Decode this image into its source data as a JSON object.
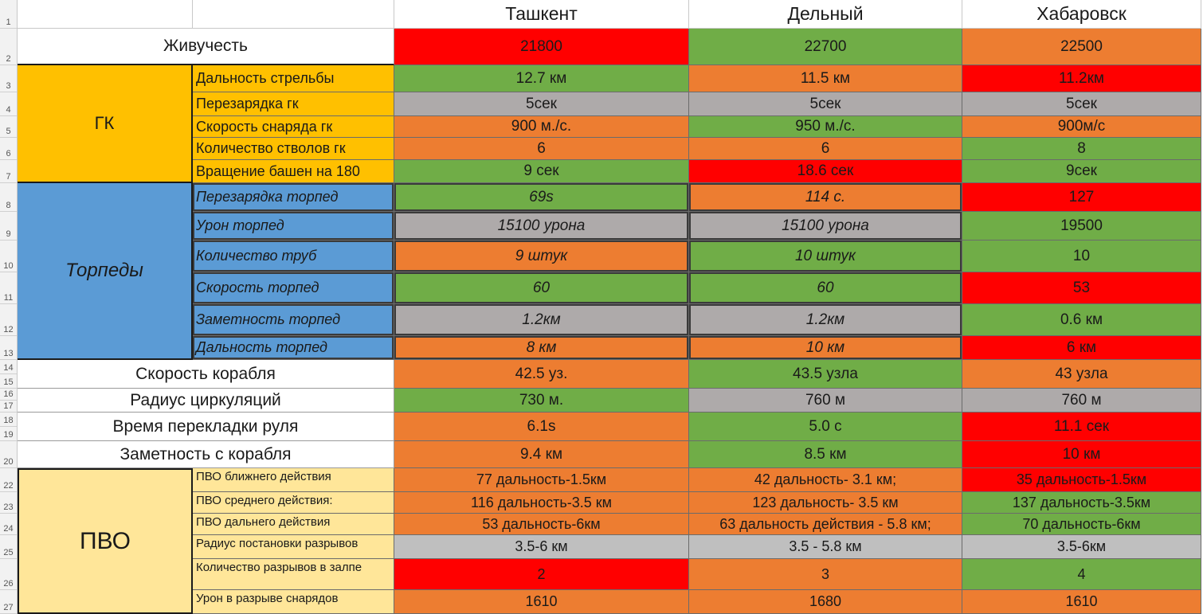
{
  "colors": {
    "red": "#ff0000",
    "green": "#70ad47",
    "orange": "#ed7d31",
    "gray": "#aeaaaa",
    "gold": "#ffc000",
    "blue": "#5b9bd5",
    "pale": "#ffe699"
  },
  "columns": [
    "Ташкент",
    "Дельный",
    "Хабаровск"
  ],
  "row_numbers": [
    "1",
    "2",
    "3",
    "4",
    "5",
    "6",
    "7",
    "8",
    "9",
    "10",
    "11",
    "12",
    "13",
    "14",
    "15",
    "16",
    "17",
    "18",
    "19",
    "20",
    "22",
    "23",
    "24",
    "25",
    "26",
    "27"
  ],
  "survivability": {
    "label": "Живучесть",
    "values": [
      "21800",
      "22700",
      "22500"
    ],
    "colors": [
      "red",
      "green",
      "orange"
    ]
  },
  "gk": {
    "group": "ГК",
    "rows": [
      {
        "label": "Дальность стрельбы",
        "values": [
          "12.7 км",
          "11.5 км",
          "11.2км"
        ],
        "colors": [
          "green",
          "orange",
          "red"
        ]
      },
      {
        "label": "Перезарядка гк",
        "values": [
          "5сек",
          "5сек",
          "5сек"
        ],
        "colors": [
          "gray",
          "gray",
          "gray"
        ]
      },
      {
        "label": "Скорость снаряда гк",
        "values": [
          "900 м./с.",
          "950 м./с.",
          "900м/с"
        ],
        "colors": [
          "orange",
          "green",
          "orange"
        ]
      },
      {
        "label": "Количество стволов гк",
        "values": [
          "6",
          "6",
          "8"
        ],
        "colors": [
          "orange",
          "orange",
          "green"
        ]
      },
      {
        "label": "Вращение башен на 180",
        "values": [
          "9 сек",
          "18.6 сек",
          "9сек"
        ],
        "colors": [
          "green",
          "red",
          "green"
        ]
      }
    ]
  },
  "torpedoes": {
    "group": "Торпеды",
    "rows": [
      {
        "label": "Перезарядка торпед",
        "values": [
          "69s",
          "114 с.",
          "127"
        ],
        "colors": [
          "green",
          "orange",
          "red"
        ]
      },
      {
        "label": "Урон торпед",
        "values": [
          "15100 урона",
          "15100 урона",
          "19500"
        ],
        "colors": [
          "gray",
          "gray",
          "green"
        ]
      },
      {
        "label": "Количество труб",
        "values": [
          "9 штук",
          "10 штук",
          "10"
        ],
        "colors": [
          "orange",
          "green",
          "green"
        ]
      },
      {
        "label": "Скорость торпед",
        "values": [
          "60",
          "60",
          "53"
        ],
        "colors": [
          "green",
          "green",
          "red"
        ]
      },
      {
        "label": "Заметность торпед",
        "values": [
          "1.2км",
          "1.2км",
          "0.6 км"
        ],
        "colors": [
          "gray",
          "gray",
          "green"
        ]
      },
      {
        "label": "Дальность торпед",
        "values": [
          "8 км",
          "10 км",
          "6 км"
        ],
        "colors": [
          "orange",
          "orange",
          "red"
        ]
      }
    ]
  },
  "singles": [
    {
      "label": "Скорость корабля",
      "values": [
        "42.5 уз.",
        "43.5 узла",
        "43 узла"
      ],
      "colors": [
        "orange",
        "green",
        "orange"
      ]
    },
    {
      "label": "Радиус циркуляций",
      "values": [
        "730 м.",
        "760 м",
        "760 м"
      ],
      "colors": [
        "green",
        "gray",
        "gray"
      ]
    },
    {
      "label": "Время перекладки руля",
      "values": [
        "6.1s",
        "5.0 с",
        "11.1 сек"
      ],
      "colors": [
        "orange",
        "green",
        "red"
      ]
    },
    {
      "label": "Заметность с корабля",
      "values": [
        "9.4 км",
        "8.5 км",
        "10 км"
      ],
      "colors": [
        "orange",
        "green",
        "red"
      ]
    }
  ],
  "pvo": {
    "group": "ПВО",
    "rows": [
      {
        "label": "ПВО ближнего действия",
        "values": [
          "77 дальность-1.5км",
          "42 дальность- 3.1 км;",
          "35 дальность-1.5км"
        ],
        "colors": [
          "orange",
          "orange",
          "red"
        ]
      },
      {
        "label": "ПВО среднего действия:",
        "values": [
          "116 дальность-3.5 км",
          "123 дальность- 3.5 км",
          "137 дальность-3.5км"
        ],
        "colors": [
          "orange",
          "orange",
          "green"
        ]
      },
      {
        "label": "ПВО дальнего действия",
        "values": [
          "53 дальность-6км",
          "63 дальность действия - 5.8 км;",
          "70 дальность-6км"
        ],
        "colors": [
          "orange",
          "orange",
          "green"
        ]
      },
      {
        "label": "Радиус постановки разрывов",
        "values": [
          "3.5-6 км",
          "3.5 - 5.8 км",
          "3.5-6км"
        ],
        "colors": [
          "gray",
          "gray",
          "gray"
        ]
      },
      {
        "label": "Количество разрывов в залпе",
        "values": [
          "2",
          "3",
          "4"
        ],
        "colors": [
          "red",
          "orange",
          "green"
        ]
      },
      {
        "label": "Урон в разрыве снарядов",
        "values": [
          "1610",
          "1680",
          "1610"
        ],
        "colors": [
          "orange",
          "orange",
          "orange"
        ]
      }
    ]
  }
}
